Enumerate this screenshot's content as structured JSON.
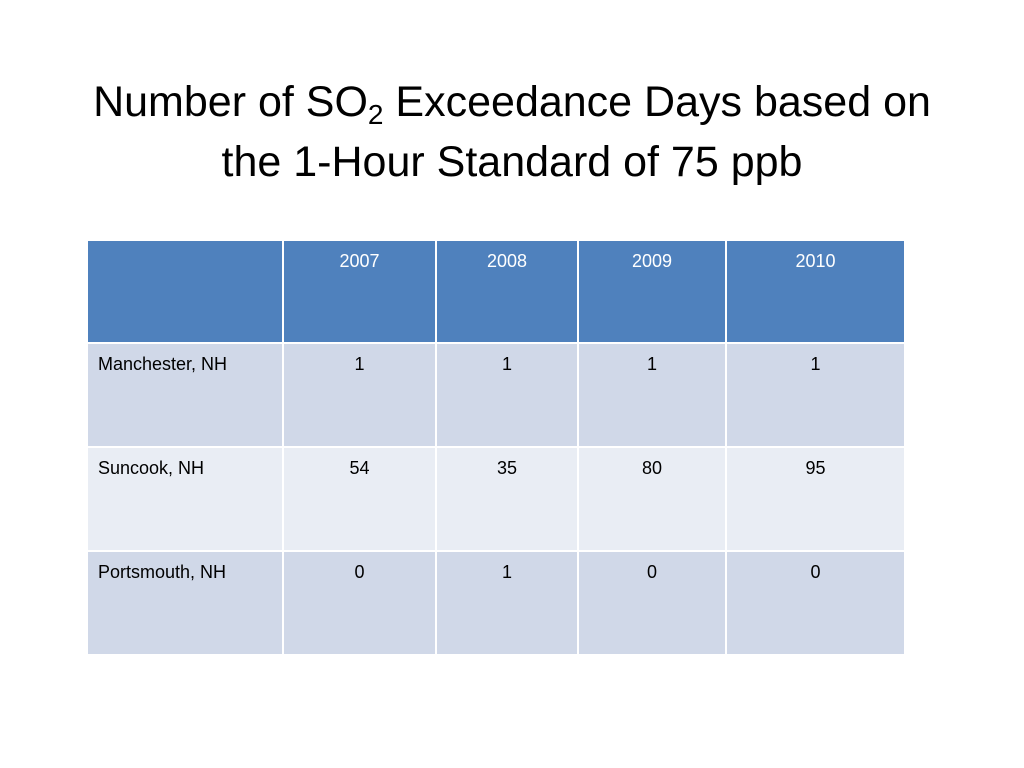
{
  "slide": {
    "title_before_sub": "Number of SO",
    "title_sub": "2",
    "title_after_sub": " Exceedance Days based on",
    "title_line2": "the 1-Hour Standard of 75 ppb"
  },
  "table": {
    "header": [
      "",
      "2007",
      "2008",
      "2009",
      "2010"
    ],
    "rows": [
      {
        "label": "Manchester, NH",
        "values": [
          "1",
          "1",
          "1",
          "1"
        ]
      },
      {
        "label": "Suncook, NH",
        "values": [
          "54",
          "35",
          "80",
          "95"
        ]
      },
      {
        "label": "Portsmouth, NH",
        "values": [
          "0",
          "1",
          "0",
          "0"
        ]
      }
    ]
  },
  "colors": {
    "header_bg": "#4f81bd",
    "row_odd_bg": "#d0d8e8",
    "row_even_bg": "#e9edf4"
  }
}
